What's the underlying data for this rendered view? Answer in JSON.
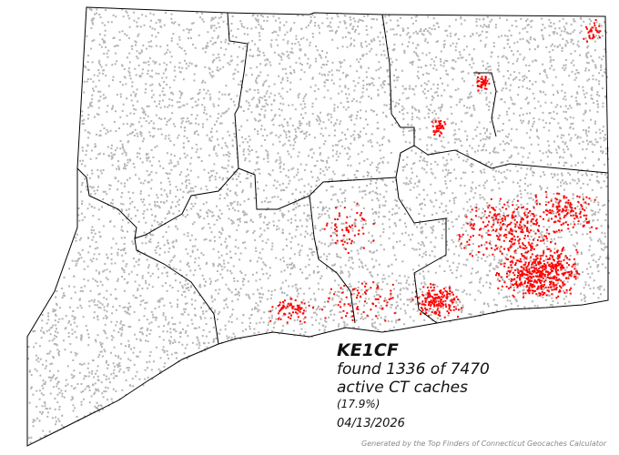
{
  "user": "KE1CF",
  "found_line": "found 1336 of 7470",
  "active_line": "active CT caches",
  "percent": "(17.9%)",
  "date": "04/13/2026",
  "credit": "Generated by the Top Finders of Connecticut Geocaches Calculator",
  "found_count": 1336,
  "total_count": 7470,
  "colors": {
    "found": "#ff0000",
    "unfound": "#b4b4b4",
    "border": "#000000"
  }
}
